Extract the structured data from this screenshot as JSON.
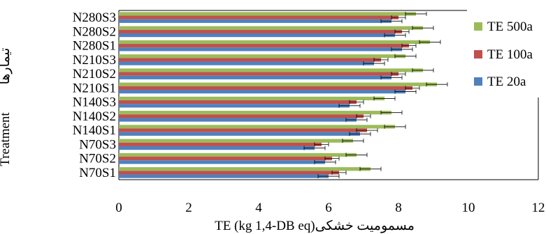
{
  "chart_data": {
    "type": "bar",
    "orientation": "horizontal",
    "categories": [
      "N280S3",
      "N280S2",
      "N280S1",
      "N210S3",
      "N210S2",
      "N210S1",
      "N140S3",
      "N140S2",
      "N140S1",
      "N70S3",
      "N70S2",
      "N70S1"
    ],
    "series": [
      {
        "name": "TE 500a",
        "color": "#9BBB59",
        "values": [
          8.5,
          8.7,
          8.9,
          8.2,
          8.7,
          9.1,
          7.6,
          7.8,
          7.9,
          6.7,
          6.8,
          7.2
        ],
        "errors": [
          0.3,
          0.3,
          0.3,
          0.3,
          0.3,
          0.3,
          0.3,
          0.3,
          0.3,
          0.3,
          0.3,
          0.3
        ]
      },
      {
        "name": "TE 100a",
        "color": "#C0504D",
        "values": [
          8.0,
          8.1,
          8.3,
          7.5,
          8.0,
          8.4,
          6.8,
          7.0,
          7.1,
          5.8,
          6.1,
          6.3
        ],
        "errors": [
          0.2,
          0.2,
          0.2,
          0.2,
          0.2,
          0.2,
          0.2,
          0.2,
          0.3,
          0.2,
          0.2,
          0.2
        ]
      },
      {
        "name": "TE 20a",
        "color": "#4F81BD",
        "values": [
          7.8,
          7.9,
          8.1,
          7.3,
          7.8,
          8.2,
          6.6,
          6.8,
          6.9,
          5.6,
          5.9,
          6.0
        ],
        "errors": [
          0.3,
          0.3,
          0.3,
          0.3,
          0.3,
          0.3,
          0.3,
          0.3,
          0.3,
          0.3,
          0.3,
          0.3
        ]
      }
    ],
    "xlim": [
      0,
      12
    ],
    "xticks": [
      "0",
      "2",
      "4",
      "6",
      "8",
      "10",
      "12"
    ],
    "xlabel_fa": "مسمومیت خشکی",
    "xlabel_en": "TE (kg 1,4-DB eq)",
    "ylabel_fa": "تیمارها",
    "ylabel_en": "Treatment",
    "legend_position": "right",
    "grid": false
  }
}
